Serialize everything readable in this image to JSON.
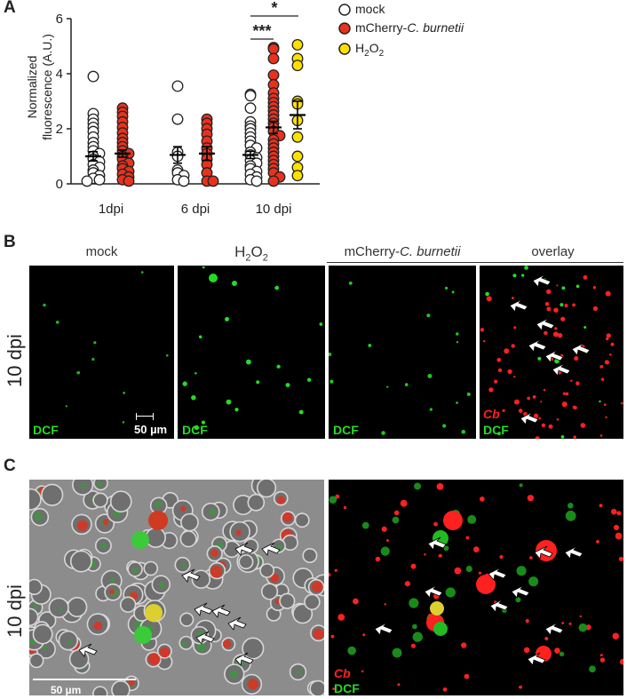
{
  "panels": {
    "a_letter": "A",
    "b_letter": "B",
    "c_letter": "C"
  },
  "chart_data": {
    "type": "scatter",
    "ylabel_line1": "Normalized",
    "ylabel_line2": "fluorescence (A.U.)",
    "ylim": [
      0,
      6
    ],
    "yticks": [
      "0",
      "2",
      "4",
      "6"
    ],
    "categories": [
      "1dpi",
      "6 dpi",
      "10 dpi"
    ],
    "series": [
      {
        "name": "mock",
        "color": "#ffffff",
        "groups": [
          {
            "category": "1dpi",
            "mean": 1.0,
            "sem": 0.17,
            "values": [
              3.9,
              2.55,
              2.35,
              2.2,
              2.05,
              1.9,
              1.7,
              1.5,
              1.35,
              1.2,
              1.1,
              1.0,
              0.9,
              0.8,
              0.7,
              0.6,
              0.5,
              0.4,
              0.3,
              0.2,
              0.15,
              0.1
            ]
          },
          {
            "category": "6 dpi",
            "mean": 1.05,
            "sem": 0.3,
            "values": [
              3.55,
              2.35,
              1.15,
              1.0,
              0.5,
              0.4,
              0.3,
              0.15,
              0.1
            ]
          },
          {
            "category": "10 dpi",
            "mean": 1.05,
            "sem": 0.13,
            "values": [
              3.25,
              3.2,
              2.75,
              2.25,
              2.1,
              2.0,
              1.85,
              1.7,
              1.55,
              1.4,
              1.3,
              1.15,
              1.05,
              0.95,
              0.85,
              0.75,
              0.65,
              0.55,
              0.45,
              0.35,
              0.25,
              0.15,
              0.1
            ]
          }
        ]
      },
      {
        "name": "mCherry-C. burnetii",
        "color": "#e8321e",
        "groups": [
          {
            "category": "1dpi",
            "mean": 1.1,
            "sem": 0.13,
            "values": [
              2.75,
              2.6,
              2.45,
              2.25,
              2.05,
              1.85,
              1.65,
              1.5,
              1.35,
              1.2,
              1.1,
              1.0,
              0.9,
              0.75,
              0.65,
              0.55,
              0.45,
              0.35,
              0.25,
              0.15,
              0.1
            ]
          },
          {
            "category": "6 dpi",
            "mean": 1.1,
            "sem": 0.25,
            "values": [
              2.35,
              2.2,
              2.0,
              1.8,
              1.55,
              1.3,
              1.1,
              0.9,
              0.7,
              0.4,
              0.1,
              0.1
            ]
          },
          {
            "category": "10 dpi",
            "mean": 2.05,
            "sem": 0.22,
            "values": [
              4.95,
              4.9,
              4.55,
              3.95,
              3.6,
              3.3,
              3.1,
              2.95,
              2.8,
              2.65,
              2.5,
              2.35,
              2.2,
              2.05,
              1.9,
              1.75,
              1.6,
              1.45,
              1.3,
              1.15,
              1.0,
              0.85,
              0.7,
              0.55,
              0.4,
              0.25,
              0.1
            ]
          }
        ]
      },
      {
        "name": "H2O2",
        "color": "#ffe000",
        "groups": [
          {
            "category": "10 dpi",
            "mean": 2.5,
            "sem": 0.5,
            "values": [
              5.05,
              4.55,
              4.3,
              3.0,
              2.9,
              2.3,
              1.7,
              1.0,
              0.6,
              0.3
            ]
          }
        ]
      }
    ],
    "significance": [
      {
        "label": "*",
        "between": [
          "mock",
          "H2O2"
        ],
        "category": "10 dpi"
      },
      {
        "label": "***",
        "between": [
          "mock",
          "mCherry-C. burnetii"
        ],
        "category": "10 dpi"
      }
    ],
    "legend_position": "right"
  },
  "legend": {
    "mock": "mock",
    "cb_prefix": "mCherry-",
    "cb_italic": "C. burnetii",
    "h2o2_a": "H",
    "h2o2_sub1": "2",
    "h2o2_b": "O",
    "h2o2_sub2": "2"
  },
  "panel_b": {
    "row_label": "10 dpi",
    "col_mock": "mock",
    "col_h2o2_a": "H",
    "col_h2o2_sub1": "2",
    "col_h2o2_b": "O",
    "col_h2o2_sub2": "2",
    "col_cb_prefix": "mCherry-",
    "col_cb_italic": "C. burnetii",
    "col_overlay": "overlay",
    "dcf": "DCF",
    "cb": "Cb",
    "scale": "50 µm"
  },
  "panel_c": {
    "row_label": "10 dpi",
    "scale": "50 µm",
    "cb": "Cb",
    "dcf": "DCF"
  },
  "colors": {
    "dcf_green": "#22dd22",
    "cb_red": "#ff2020",
    "h2o2_yellow": "#ffe000",
    "mock_white": "#ffffff"
  }
}
